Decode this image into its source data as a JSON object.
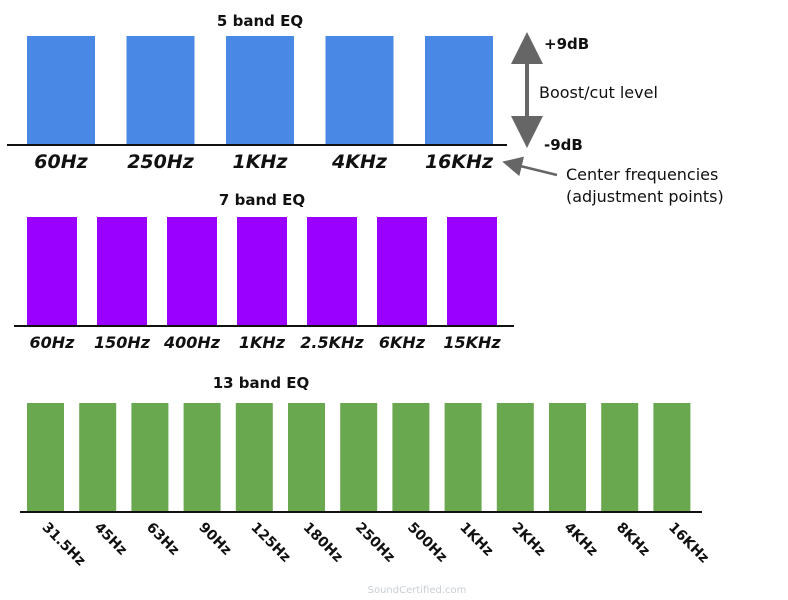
{
  "colors": {
    "band5": "#4a88e6",
    "band7": "#9a00ff",
    "band13": "#6aa84f",
    "axis": "#111111",
    "arrow": "#666666"
  },
  "eq5": {
    "title": "5 band EQ",
    "bands": [
      "60Hz",
      "250Hz",
      "1KHz",
      "4KHz",
      "16KHz"
    ]
  },
  "eq7": {
    "title": "7 band EQ",
    "bands": [
      "60Hz",
      "150Hz",
      "400Hz",
      "1KHz",
      "2.5KHz",
      "6KHz",
      "15KHz"
    ]
  },
  "eq13": {
    "title": "13 band EQ",
    "bands": [
      "31.5Hz",
      "45Hz",
      "63Hz",
      "90Hz",
      "125Hz",
      "180Hz",
      "250Hz",
      "500Hz",
      "1KHz",
      "2KHz",
      "4KHz",
      "8KHz",
      "16KHz"
    ]
  },
  "annotations": {
    "boost_max": "+9dB",
    "boost_label": "Boost/cut level",
    "cut_min": "-9dB",
    "center_line1": "Center frequencies",
    "center_line2": "(adjustment points)"
  },
  "watermark": "SoundCertified.com"
}
